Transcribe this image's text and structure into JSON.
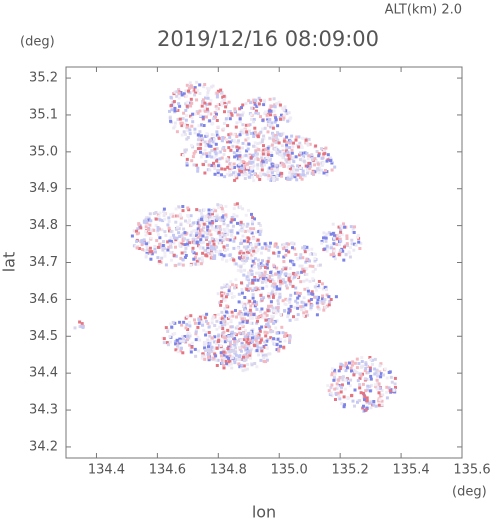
{
  "chart_data": {
    "type": "map",
    "header": "ALT(km) 2.0",
    "title": "2019/12/16 08:09:00",
    "x_label": "lon",
    "y_label": "lat",
    "x_unit": "(deg)",
    "y_unit": "(deg)",
    "xlim": [
      134.3,
      135.6
    ],
    "xticks": [
      134.4,
      134.6,
      134.8,
      {
        "value": 135.0,
        "label": "135.0"
      },
      135.2,
      135.4,
      135.6
    ],
    "ylim": [
      34.17,
      35.23
    ],
    "yticks": [
      34.2,
      34.3,
      34.4,
      34.5,
      34.6,
      34.7,
      34.8,
      34.9,
      {
        "value": 35.0,
        "label": "35.0"
      },
      35.1,
      35.2
    ],
    "grid": false
  }
}
